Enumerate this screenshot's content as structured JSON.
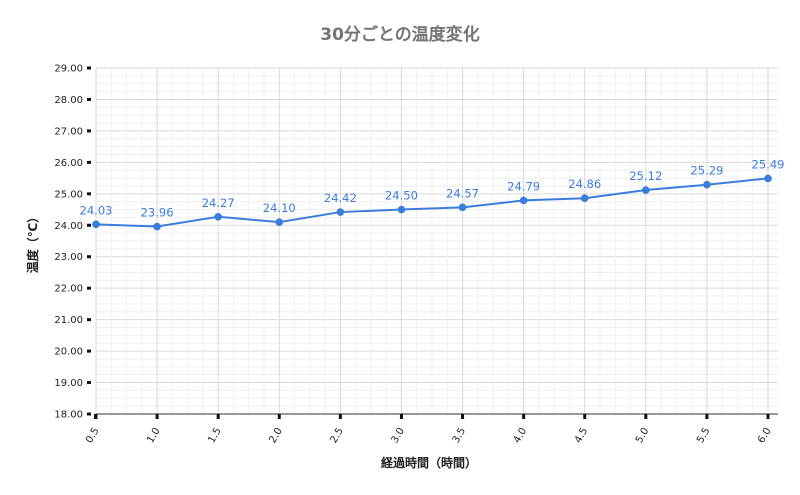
{
  "chart_data": {
    "type": "line",
    "title": "30分ごとの温度変化",
    "xlabel": "経過時間（時間）",
    "ylabel": "温度（℃）",
    "categories": [
      "0.5",
      "1.0",
      "1.5",
      "2.0",
      "2.5",
      "3.0",
      "3.5",
      "4.0",
      "4.5",
      "5.0",
      "5.5",
      "6.0"
    ],
    "y_tick_labels": [
      "18.00",
      "19.00",
      "20.00",
      "21.00",
      "22.00",
      "23.00",
      "24.00",
      "25.00",
      "26.00",
      "27.00",
      "28.00",
      "29.00"
    ],
    "series": [
      {
        "values": [
          24.03,
          23.96,
          24.27,
          24.1,
          24.42,
          24.5,
          24.57,
          24.79,
          24.86,
          25.12,
          25.29,
          25.49
        ],
        "data_labels": [
          "24.03",
          "23.96",
          "24.27",
          "24.10",
          "24.42",
          "24.50",
          "24.57",
          "24.79",
          "24.86",
          "25.12",
          "25.29",
          "25.49"
        ],
        "color": "#3b7ddd"
      }
    ],
    "ylim": [
      18,
      29
    ],
    "grid": true,
    "legend": "none"
  }
}
